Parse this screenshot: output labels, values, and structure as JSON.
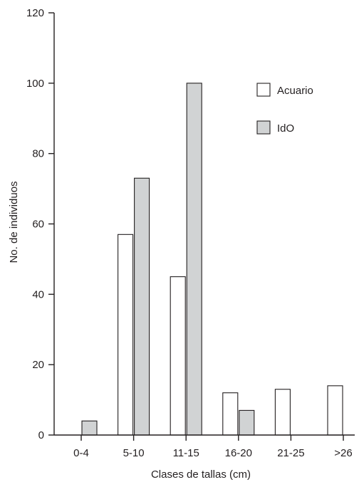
{
  "chart_data": {
    "type": "bar",
    "categories": [
      "0-4",
      "5-10",
      "11-15",
      "16-20",
      "21-25",
      ">26"
    ],
    "series": [
      {
        "name": "Acuario",
        "values": [
          0,
          57,
          45,
          12,
          13,
          14
        ],
        "color": "#ffffff"
      },
      {
        "name": "IdO",
        "values": [
          4,
          73,
          100,
          7,
          0,
          0
        ],
        "color": "#d1d3d4"
      }
    ],
    "xlabel": "Clases de tallas (cm)",
    "ylabel": "No. de individuos",
    "ylim": [
      0,
      120
    ],
    "yticks": [
      0,
      20,
      40,
      60,
      80,
      100,
      120
    ],
    "grid": false,
    "legend_position": "top-right"
  }
}
